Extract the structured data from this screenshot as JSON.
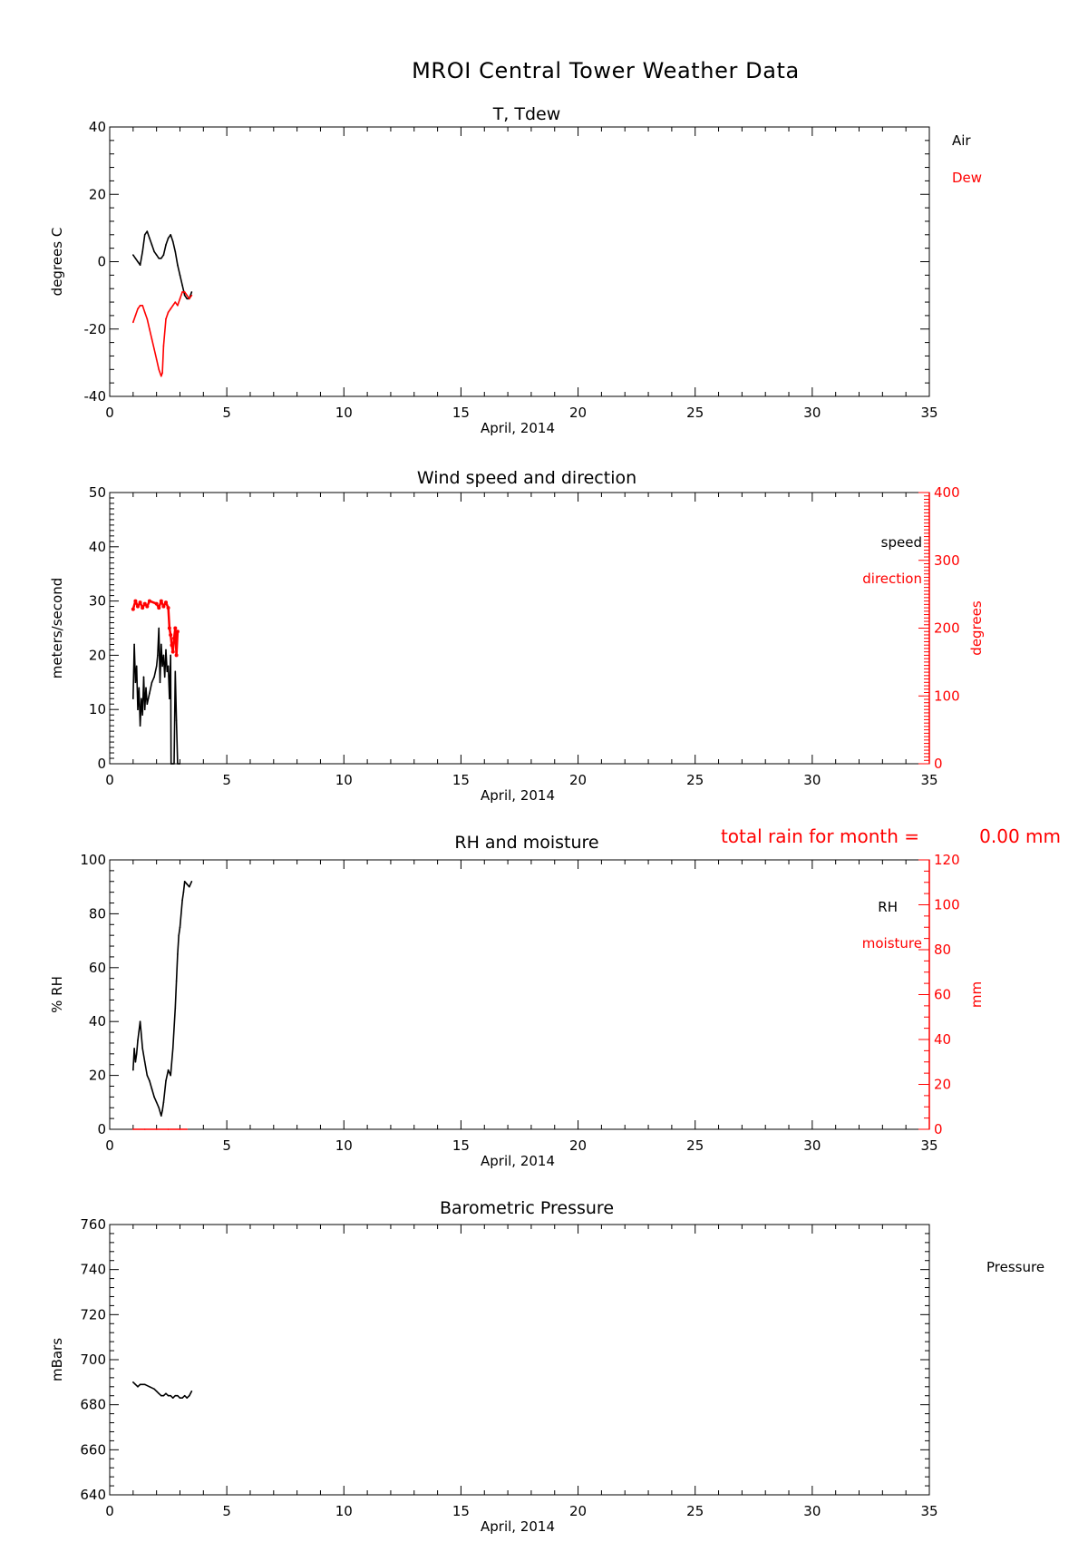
{
  "figure": {
    "title": "MROI Central Tower Weather Data"
  },
  "colors": {
    "primary": "#000000",
    "secondary": "#ff0000"
  },
  "chart_data": [
    {
      "type": "line",
      "title": "T, Tdew",
      "xlabel": "April, 2014",
      "ylabel": "degrees C",
      "xlim": [
        0,
        35
      ],
      "ylim": [
        -40,
        40
      ],
      "x_ticks": [
        0,
        5,
        10,
        15,
        20,
        25,
        30,
        35
      ],
      "y_ticks": [
        -40,
        -20,
        0,
        20,
        40
      ],
      "legend": {
        "placement": "right",
        "entries": [
          "Air",
          "Dew"
        ]
      },
      "series": [
        {
          "name": "Air",
          "axis": "left",
          "x": [
            1.0,
            1.1,
            1.2,
            1.3,
            1.4,
            1.5,
            1.6,
            1.7,
            1.8,
            1.9,
            2.0,
            2.1,
            2.2,
            2.3,
            2.4,
            2.5,
            2.6,
            2.7,
            2.8,
            2.9,
            3.0,
            3.1,
            3.2,
            3.3,
            3.4,
            3.5
          ],
          "y": [
            2,
            1,
            0,
            -1,
            3,
            8,
            9,
            7,
            5,
            3,
            2,
            1,
            1,
            2,
            5,
            7,
            8,
            6,
            3,
            -1,
            -4,
            -7,
            -10,
            -11,
            -11,
            -9
          ]
        },
        {
          "name": "Dew",
          "axis": "left",
          "x": [
            1.0,
            1.1,
            1.2,
            1.3,
            1.4,
            1.5,
            1.6,
            1.7,
            1.8,
            1.9,
            2.0,
            2.1,
            2.2,
            2.25,
            2.3,
            2.4,
            2.5,
            2.6,
            2.7,
            2.8,
            2.9,
            3.0,
            3.1,
            3.2,
            3.3,
            3.4,
            3.5
          ],
          "y": [
            -18,
            -16,
            -14,
            -13,
            -13,
            -15,
            -17,
            -20,
            -23,
            -26,
            -29,
            -32,
            -34,
            -33,
            -25,
            -17,
            -15,
            -14,
            -13,
            -12,
            -13,
            -11,
            -9,
            -9,
            -10,
            -11,
            -10
          ]
        }
      ]
    },
    {
      "type": "line",
      "title": "Wind speed and direction",
      "xlabel": "April, 2014",
      "ylabel": "meters/second",
      "ylabel_right": "degrees",
      "xlim": [
        0,
        35
      ],
      "ylim": [
        0,
        50
      ],
      "ylim_right": [
        0,
        400
      ],
      "x_ticks": [
        0,
        5,
        10,
        15,
        20,
        25,
        30,
        35
      ],
      "y_ticks": [
        0,
        10,
        20,
        30,
        40,
        50
      ],
      "y_ticks_right": [
        0,
        100,
        200,
        300,
        400
      ],
      "legend": {
        "placement": "right",
        "entries": [
          "speed",
          "direction"
        ]
      },
      "series": [
        {
          "name": "speed",
          "axis": "left",
          "x": [
            1.0,
            1.05,
            1.1,
            1.15,
            1.2,
            1.25,
            1.3,
            1.35,
            1.4,
            1.45,
            1.5,
            1.55,
            1.6,
            1.65,
            1.7,
            1.8,
            1.9,
            2.0,
            2.05,
            2.1,
            2.15,
            2.2,
            2.25,
            2.3,
            2.35,
            2.4,
            2.45,
            2.5,
            2.55,
            2.6,
            2.62,
            2.65,
            2.7,
            2.75,
            2.8,
            2.85,
            2.9,
            2.95,
            3.0
          ],
          "y": [
            12,
            22,
            15,
            18,
            10,
            14,
            7,
            12,
            9,
            16,
            10,
            14,
            11,
            12,
            13,
            15,
            16,
            18,
            20,
            25,
            15,
            22,
            18,
            20,
            16,
            21,
            17,
            18,
            12,
            20,
            0,
            0,
            0,
            0,
            17,
            8,
            0,
            0,
            0
          ]
        },
        {
          "name": "direction",
          "axis": "right",
          "x": [
            1.0,
            1.1,
            1.2,
            1.3,
            1.4,
            1.5,
            1.6,
            1.7,
            2.0,
            2.1,
            2.2,
            2.3,
            2.4,
            2.5,
            2.55,
            2.6,
            2.65,
            2.7,
            2.75,
            2.8,
            2.85,
            2.9
          ],
          "y": [
            228,
            240,
            232,
            238,
            230,
            236,
            232,
            240,
            236,
            230,
            240,
            232,
            238,
            230,
            200,
            190,
            175,
            165,
            185,
            200,
            160,
            195
          ]
        }
      ]
    },
    {
      "type": "line",
      "title": "RH and moisture",
      "xlabel": "April, 2014",
      "ylabel": "% RH",
      "ylabel_right": "mm",
      "xlim": [
        0,
        35
      ],
      "ylim": [
        0,
        100
      ],
      "ylim_right": [
        0,
        120
      ],
      "x_ticks": [
        0,
        5,
        10,
        15,
        20,
        25,
        30,
        35
      ],
      "y_ticks": [
        0,
        20,
        40,
        60,
        80,
        100
      ],
      "y_ticks_right": [
        0,
        20,
        40,
        60,
        80,
        100,
        120
      ],
      "annotation": {
        "label": "total rain for month =",
        "value": "0.00 mm"
      },
      "legend": {
        "placement": "right",
        "entries": [
          "RH",
          "moisture"
        ]
      },
      "series": [
        {
          "name": "RH",
          "axis": "left",
          "x": [
            1.0,
            1.05,
            1.1,
            1.15,
            1.2,
            1.3,
            1.4,
            1.5,
            1.6,
            1.7,
            1.8,
            1.9,
            2.0,
            2.1,
            2.2,
            2.25,
            2.3,
            2.4,
            2.5,
            2.6,
            2.7,
            2.8,
            2.85,
            2.9,
            2.95,
            3.0,
            3.05,
            3.1,
            3.15,
            3.2,
            3.3,
            3.4,
            3.5
          ],
          "y": [
            22,
            30,
            25,
            28,
            33,
            40,
            30,
            25,
            20,
            18,
            15,
            12,
            10,
            8,
            5,
            7,
            10,
            18,
            22,
            20,
            30,
            45,
            55,
            65,
            72,
            75,
            80,
            85,
            88,
            92,
            91,
            90,
            92
          ]
        },
        {
          "name": "moisture",
          "axis": "right",
          "x": [
            1.0,
            1.5,
            2.0,
            2.5,
            3.0,
            3.3
          ],
          "y": [
            0,
            0,
            0,
            0,
            0,
            0
          ]
        }
      ]
    },
    {
      "type": "line",
      "title": "Barometric Pressure",
      "xlabel": "April, 2014",
      "ylabel": "mBars",
      "xlim": [
        0,
        35
      ],
      "ylim": [
        640,
        760
      ],
      "x_ticks": [
        0,
        5,
        10,
        15,
        20,
        25,
        30,
        35
      ],
      "y_ticks": [
        640,
        660,
        680,
        700,
        720,
        740,
        760
      ],
      "legend": {
        "placement": "right",
        "entries": [
          "Pressure"
        ]
      },
      "series": [
        {
          "name": "Pressure",
          "axis": "left",
          "x": [
            1.0,
            1.1,
            1.2,
            1.3,
            1.5,
            1.7,
            1.9,
            2.0,
            2.1,
            2.2,
            2.3,
            2.4,
            2.5,
            2.6,
            2.7,
            2.8,
            2.9,
            3.0,
            3.1,
            3.2,
            3.3,
            3.4,
            3.5
          ],
          "y": [
            690,
            689,
            688,
            689,
            689,
            688,
            687,
            686,
            685,
            684,
            684,
            685,
            684,
            684,
            683,
            684,
            684,
            683,
            683,
            684,
            683,
            684,
            686
          ]
        }
      ]
    }
  ]
}
